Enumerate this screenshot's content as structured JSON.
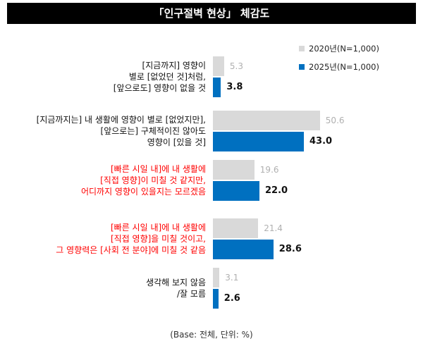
{
  "title": "「인구절벽 현상」 체감도",
  "footnote": "(Base: 전체, 단위: %)",
  "colors": {
    "y2020": "#d9d9d9",
    "y2025": "#0070c0",
    "title_bg": "#000000",
    "red_text": "#ff0000"
  },
  "chart_data": {
    "type": "bar",
    "orientation": "horizontal",
    "categories": [
      {
        "lines": [
          "[지금까지] 영향이",
          "별로 [없었던 것]처럼,",
          "[앞으로도] 영향이 없을 것"
        ],
        "color": "black"
      },
      {
        "lines": [
          "[지금까지는] 내 생활에 영향이 별로 [없었지만],",
          "[앞으로는] 구체적이진 않아도",
          "영향이 [있을 것]"
        ],
        "color": "black"
      },
      {
        "lines": [
          "[빠른 시일 내]에 내 생활에",
          "[직접 영향]이 미칠 것 같지만,",
          "어디까지 영향이 있을지는 모르겠음"
        ],
        "color": "red"
      },
      {
        "lines": [
          "[빠른 시일 내]에 내 생활에",
          "[직접 영향]을 미칠 것이고,",
          "그 영향력은 [사회 전 분야]에 미칠 것 같음"
        ],
        "color": "red"
      },
      {
        "lines": [
          "생각해 보지 않음",
          "/잘 모름"
        ],
        "color": "black"
      }
    ],
    "series": [
      {
        "name": "2020년(N=1,000)",
        "values": [
          5.3,
          50.6,
          19.6,
          21.4,
          3.1
        ],
        "labels": [
          "5.3",
          "50.6",
          "19.6",
          "21.4",
          "3.1"
        ]
      },
      {
        "name": "2025년(N=1,000)",
        "values": [
          3.8,
          43.0,
          22.0,
          28.6,
          2.6
        ],
        "labels": [
          "3.8",
          "43.0",
          "22.0",
          "28.6",
          "2.6"
        ]
      }
    ],
    "legend_position": "top-right",
    "grid": false,
    "xlim": [
      0,
      60
    ]
  }
}
